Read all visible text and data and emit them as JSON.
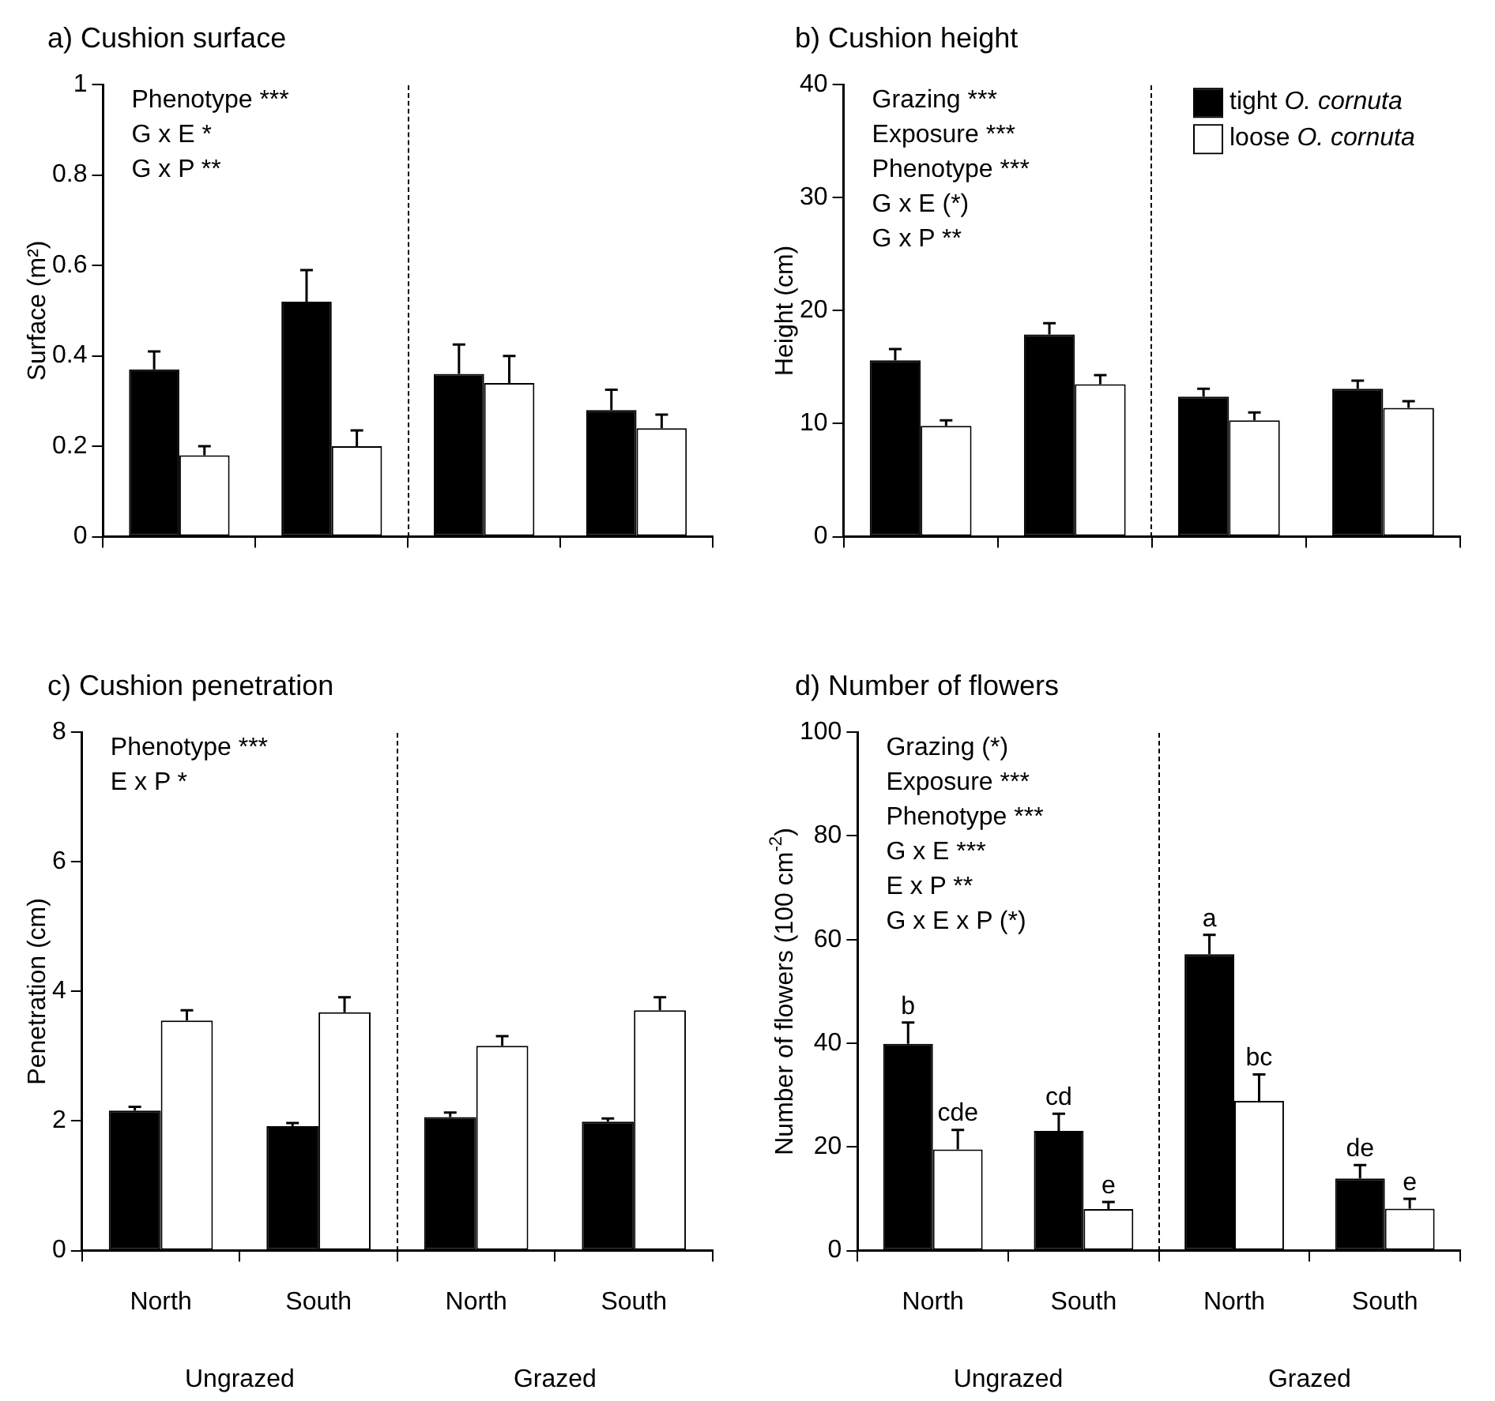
{
  "chart_data": [
    {
      "type": "bar",
      "title": "a) Cushion surface",
      "ylabel": "Surface (m²)",
      "categories": [
        null,
        null,
        null,
        null
      ],
      "series": [
        {
          "color": "#000000",
          "values": [
            0.37,
            0.52,
            0.36,
            0.28
          ],
          "errors": [
            [
              0.37,
              0.41
            ],
            [
              0.52,
              0.59
            ],
            [
              0.36,
              0.425
            ],
            [
              0.28,
              0.325
            ]
          ]
        },
        {
          "color": "#ffffff",
          "values": [
            0.18,
            0.2,
            0.34,
            0.24
          ],
          "errors": [
            [
              0.18,
              0.2
            ],
            [
              0.2,
              0.235
            ],
            [
              0.34,
              0.4
            ],
            [
              0.24,
              0.27
            ]
          ]
        }
      ],
      "ylim": [
        0,
        1
      ],
      "yticks": [
        0,
        0.2,
        0.4,
        0.6,
        0.8,
        1
      ],
      "legend": false,
      "grid": false,
      "annotations": [
        "Phenotype ***\nG x E *\nG x P **"
      ]
    },
    {
      "type": "bar",
      "title": "b) Cushion height",
      "ylabel": "Height (cm)",
      "categories": [
        null,
        null,
        null,
        null
      ],
      "series": [
        {
          "name": "tight O. cornuta",
          "color": "#000000",
          "values": [
            15.6,
            17.9,
            12.4,
            13.1
          ],
          "errors": [
            [
              15.6,
              16.6
            ],
            [
              17.9,
              18.9
            ],
            [
              12.4,
              13.1
            ],
            [
              13.1,
              13.8
            ]
          ]
        },
        {
          "name": "loose O. cornuta",
          "color": "#ffffff",
          "values": [
            9.8,
            13.5,
            10.3,
            11.4
          ],
          "errors": [
            [
              9.8,
              10.3
            ],
            [
              13.5,
              14.3
            ],
            [
              10.3,
              11
            ],
            [
              11.4,
              12
            ]
          ]
        }
      ],
      "ylim": [
        0,
        40
      ],
      "yticks": [
        0,
        10,
        20,
        30,
        40
      ],
      "legend": "top right",
      "grid": false,
      "annotations": [
        "Grazing ***\nExposure ***\nPhenotype ***\nG x E (*)\nG x P **"
      ]
    },
    {
      "type": "bar",
      "title": "c) Cushion penetration",
      "ylabel": "Penetration (cm)",
      "categories": [
        "North",
        "South",
        "North",
        "South"
      ],
      "series": [
        {
          "color": "#000000",
          "values": [
            2.16,
            1.92,
            2.06,
            1.99
          ],
          "errors": [
            [
              2.16,
              2.22
            ],
            [
              1.92,
              1.97
            ],
            [
              2.06,
              2.13
            ],
            [
              1.99,
              2.04
            ]
          ]
        },
        {
          "color": "#ffffff",
          "values": [
            3.55,
            3.68,
            3.16,
            3.71
          ],
          "errors": [
            [
              3.55,
              3.71
            ],
            [
              3.68,
              3.91
            ],
            [
              3.16,
              3.31
            ],
            [
              3.71,
              3.91
            ]
          ]
        }
      ],
      "ylim": [
        0,
        8
      ],
      "yticks": [
        0,
        2,
        4,
        6,
        8
      ],
      "legend": false,
      "grid": false,
      "annotations": [
        "Phenotype ***\nE x P *",
        "Ungrazed",
        "Grazed"
      ]
    },
    {
      "type": "bar",
      "title": "d) Number of flowers",
      "ylabel": "Number of flowers (100 cm$^{-2}$)",
      "categories": [
        "North",
        "South",
        "North",
        "South"
      ],
      "series": [
        {
          "color": "#000000",
          "values": [
            39.9,
            23.1,
            57.2,
            13.9
          ],
          "errors": [
            [
              39.9,
              44
            ],
            [
              23.1,
              26.4
            ],
            [
              57.2,
              60.9
            ],
            [
              13.9,
              16.5
            ]
          ],
          "value_labels": [
            "b",
            "cd",
            "a",
            "de"
          ]
        },
        {
          "color": "#ffffff",
          "values": [
            19.5,
            8,
            28.9,
            8.1
          ],
          "errors": [
            [
              19.5,
              23.3
            ],
            [
              8,
              9.4
            ],
            [
              28.9,
              34
            ],
            [
              8.1,
              10
            ]
          ],
          "value_labels": [
            "cde",
            "e",
            "bc",
            "e"
          ]
        }
      ],
      "ylim": [
        0,
        100
      ],
      "yticks": [
        0,
        20,
        40,
        60,
        80,
        100
      ],
      "legend": false,
      "grid": false,
      "annotations": [
        "Grazing (*)\nExposure ***\nPhenotype ***\nG x E ***\nE x P **\nG x E x P (*)",
        "Ungrazed",
        "Grazed"
      ]
    }
  ]
}
